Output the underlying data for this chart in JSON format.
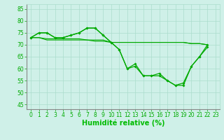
{
  "background_color": "#cff0e8",
  "grid_color": "#aaddcc",
  "line_color": "#00aa00",
  "xlabel": "Humidité relative (%)",
  "xlabel_fontsize": 7,
  "xlabel_color": "#00bb00",
  "xtick_labels": [
    "0",
    "1",
    "2",
    "3",
    "4",
    "5",
    "6",
    "7",
    "8",
    "9",
    "10",
    "11",
    "12",
    "13",
    "14",
    "15",
    "16",
    "17",
    "18",
    "19",
    "20",
    "21",
    "22",
    "23"
  ],
  "xlim": [
    -0.5,
    23.5
  ],
  "ylim": [
    43,
    87
  ],
  "yticks": [
    45,
    50,
    55,
    60,
    65,
    70,
    75,
    80,
    85
  ],
  "tick_fontsize": 5.5,
  "tick_color": "#00aa00",
  "series1_x": [
    0,
    1,
    2,
    3,
    4,
    5,
    6,
    7,
    8,
    9,
    10,
    11,
    12,
    13,
    14,
    15,
    16,
    17,
    18,
    19,
    20,
    21,
    22
  ],
  "series1_y": [
    73,
    75,
    75,
    73,
    73,
    74,
    75,
    77,
    77,
    74,
    71,
    68,
    60,
    61,
    57,
    57,
    58,
    55,
    53,
    54,
    61,
    65,
    69
  ],
  "series2_x": [
    0,
    1,
    2,
    3,
    4,
    5,
    6,
    7,
    8,
    9,
    10,
    11,
    12,
    13,
    14,
    15,
    16,
    17,
    18,
    19,
    20,
    21,
    22
  ],
  "series2_y": [
    73,
    75,
    75,
    73,
    73,
    74,
    75,
    77,
    77,
    74,
    71,
    68,
    60,
    62,
    57,
    57,
    57,
    55,
    53,
    53,
    61,
    65,
    70
  ],
  "flat1_x": [
    0,
    1,
    2,
    3,
    4,
    5,
    6,
    7,
    8,
    9,
    10,
    11,
    12,
    13,
    14,
    15,
    16,
    17,
    18,
    19,
    20,
    21,
    22
  ],
  "flat1_y": [
    73,
    73,
    72,
    72,
    72,
    72,
    72,
    72,
    71.5,
    71.5,
    71,
    71,
    71,
    71,
    71,
    71,
    71,
    71,
    71,
    71,
    70.5,
    70.5,
    70
  ],
  "flat2_x": [
    0,
    1,
    2,
    3,
    4,
    5,
    6,
    7,
    8,
    9,
    10,
    11,
    12,
    13,
    14,
    15,
    16,
    17,
    18,
    19,
    20,
    21,
    22
  ],
  "flat2_y": [
    73,
    73,
    72.5,
    72.5,
    72.5,
    72.5,
    72.5,
    72,
    72,
    72,
    71,
    71,
    71,
    71,
    71,
    71,
    71,
    71,
    71,
    71,
    70.5,
    70.5,
    70
  ]
}
